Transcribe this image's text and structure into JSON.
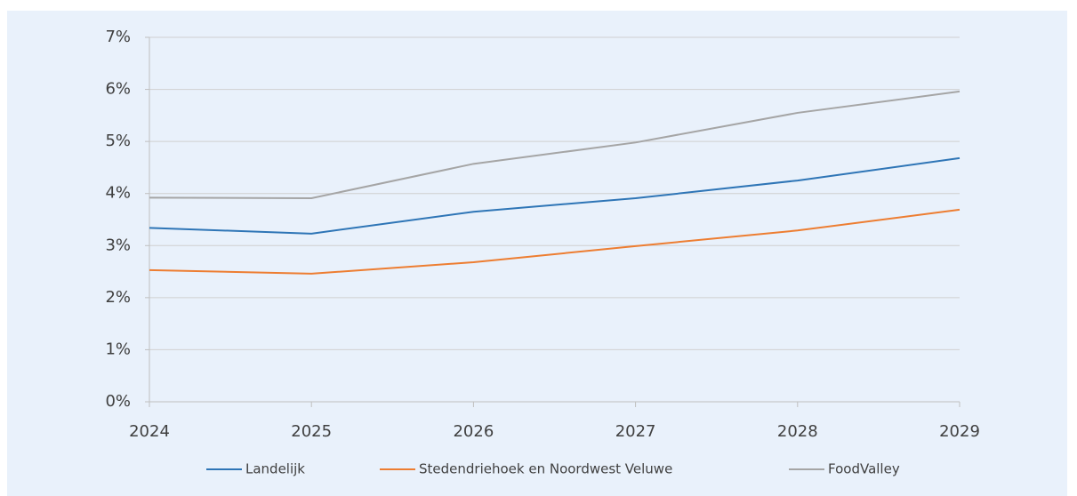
{
  "chart_data": {
    "type": "line",
    "x": [
      2024,
      2025,
      2026,
      2027,
      2028,
      2029
    ],
    "xlim": [
      2024,
      2029
    ],
    "xticks": [
      2024,
      2025,
      2026,
      2027,
      2028,
      2029
    ],
    "ylim": [
      0,
      7
    ],
    "yticks": [
      {
        "value": 0,
        "label": "0%"
      },
      {
        "value": 1,
        "label": "1%"
      },
      {
        "value": 2,
        "label": "2%"
      },
      {
        "value": 3,
        "label": "3%"
      },
      {
        "value": 4,
        "label": "4%"
      },
      {
        "value": 5,
        "label": "5%"
      },
      {
        "value": 6,
        "label": "6%"
      },
      {
        "value": 7,
        "label": "7%"
      }
    ],
    "grid": true,
    "legend": "bottom",
    "series": [
      {
        "name": "Landelijk",
        "color": "#2e75b6",
        "values": [
          3.34,
          3.23,
          3.65,
          3.91,
          4.25,
          4.68
        ]
      },
      {
        "name": "Stedendriehoek en Noordwest Veluwe",
        "color": "#ed7d31",
        "values": [
          2.53,
          2.46,
          2.68,
          2.99,
          3.29,
          3.69
        ]
      },
      {
        "name": "FoodValley",
        "color": "#a5a5a5",
        "values": [
          3.92,
          3.91,
          4.57,
          4.98,
          5.55,
          5.96
        ]
      }
    ]
  }
}
